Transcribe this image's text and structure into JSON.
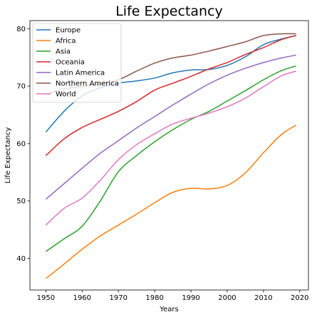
{
  "chart_data": {
    "type": "line",
    "title": "Life Expectancy",
    "xlabel": "Years",
    "ylabel": "Life Expectancy",
    "xlim": [
      1945.6,
      2022.4
    ],
    "ylim": [
      34.5,
      81.4
    ],
    "xticks": [
      1950,
      1960,
      1970,
      1980,
      1990,
      2000,
      2010,
      2020
    ],
    "yticks": [
      40,
      50,
      60,
      70,
      80
    ],
    "grid": false,
    "legend": "top-left",
    "x": [
      1950,
      1955,
      1960,
      1965,
      1970,
      1975,
      1980,
      1985,
      1990,
      1995,
      2000,
      2005,
      2010,
      2015,
      2019
    ],
    "series": [
      {
        "name": "Europe",
        "color": "#1f77b4",
        "values": [
          62.0,
          65.6,
          68.3,
          69.7,
          70.5,
          70.9,
          71.4,
          72.3,
          72.8,
          72.9,
          73.6,
          75.1,
          77.2,
          78.2,
          78.8
        ]
      },
      {
        "name": "Africa",
        "color": "#ff7f0e",
        "values": [
          36.5,
          39.0,
          41.6,
          43.9,
          45.8,
          47.7,
          49.7,
          51.5,
          52.2,
          52.1,
          52.7,
          54.9,
          58.4,
          61.6,
          63.2
        ]
      },
      {
        "name": "Asia",
        "color": "#2ca02c",
        "values": [
          41.2,
          43.4,
          45.6,
          50.0,
          55.1,
          57.9,
          60.3,
          62.4,
          64.2,
          65.6,
          67.4,
          69.2,
          71.1,
          72.7,
          73.5
        ]
      },
      {
        "name": "Oceania",
        "color": "#d62728",
        "values": [
          57.9,
          60.8,
          62.8,
          64.2,
          65.6,
          67.3,
          69.3,
          70.5,
          71.7,
          73.0,
          74.1,
          75.5,
          76.7,
          78.1,
          78.8
        ]
      },
      {
        "name": "Latin America",
        "color": "#9467bd",
        "values": [
          50.3,
          53.0,
          55.7,
          58.3,
          60.5,
          62.7,
          64.7,
          66.7,
          68.6,
          70.4,
          71.9,
          73.1,
          74.1,
          74.9,
          75.4
        ]
      },
      {
        "name": "Northern America",
        "color": "#8c564b",
        "values": [
          68.6,
          69.5,
          69.9,
          70.4,
          71.1,
          72.6,
          74.0,
          74.9,
          75.4,
          76.1,
          76.9,
          77.7,
          78.8,
          79.1,
          79.1
        ]
      },
      {
        "name": "World",
        "color": "#e377c2",
        "values": [
          45.8,
          48.7,
          50.5,
          53.6,
          57.2,
          59.8,
          61.7,
          63.4,
          64.4,
          65.3,
          66.4,
          67.9,
          69.9,
          71.8,
          72.6
        ]
      }
    ]
  }
}
